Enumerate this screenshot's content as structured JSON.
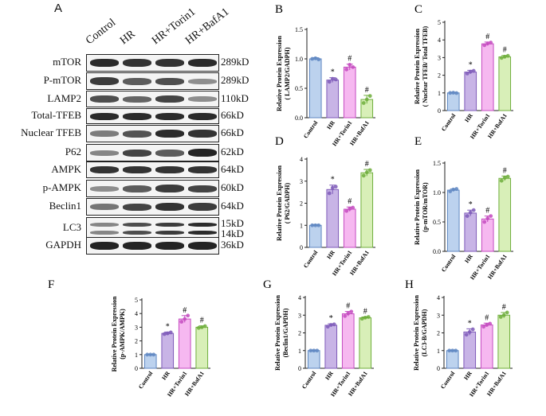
{
  "panel_a": {
    "letter": "A",
    "lanes": [
      "Control",
      "HR",
      "HR+Torin1",
      "HR+BafA1"
    ],
    "rows": [
      {
        "label": "mTOR",
        "kd": [
          "289kD"
        ],
        "intensity": [
          0.9,
          0.85,
          0.85,
          0.9
        ]
      },
      {
        "label": "P-mTOR",
        "kd": [
          "289kD"
        ],
        "intensity": [
          0.8,
          0.6,
          0.7,
          0.3
        ]
      },
      {
        "label": "LAMP2",
        "kd": [
          "110kD"
        ],
        "intensity": [
          0.7,
          0.55,
          0.75,
          0.3
        ]
      },
      {
        "label": "Total-TFEB",
        "kd": [
          "66kD"
        ],
        "intensity": [
          0.9,
          0.9,
          0.9,
          0.9
        ]
      },
      {
        "label": "Nuclear TFEB",
        "kd": [
          "66kD"
        ],
        "intensity": [
          0.4,
          0.65,
          0.9,
          0.85
        ]
      },
      {
        "label": "P62",
        "kd": [
          "62kD"
        ],
        "intensity": [
          0.35,
          0.75,
          0.6,
          0.95
        ]
      },
      {
        "label": "AMPK",
        "kd": [
          "64kD"
        ],
        "intensity": [
          0.85,
          0.85,
          0.85,
          0.85
        ]
      },
      {
        "label": "p-AMPK",
        "kd": [
          "60kD"
        ],
        "intensity": [
          0.3,
          0.6,
          0.8,
          0.75
        ]
      },
      {
        "label": "Beclin1",
        "kd": [
          "64kD"
        ],
        "intensity": [
          0.45,
          0.75,
          0.85,
          0.8
        ]
      },
      {
        "label": "LC3",
        "kd": [
          "15kD",
          "14kD"
        ],
        "intensity": [
          0.35,
          0.7,
          0.8,
          0.9
        ]
      },
      {
        "label": "GAPDH",
        "kd": [
          "36kD"
        ],
        "intensity": [
          0.95,
          0.95,
          0.95,
          0.95
        ]
      }
    ]
  },
  "colors": {
    "fills": [
      "#bcd2ee",
      "#c8b4e6",
      "#f6b8f0",
      "#d8efb8"
    ],
    "edges": [
      "#5f87c2",
      "#7e5ab8",
      "#c44bc0",
      "#6fae3c"
    ]
  },
  "chart_data": [
    {
      "letter": "B",
      "type": "bar",
      "categories": [
        "Control",
        "HR",
        "HR+Torin1",
        "HR+BafA1"
      ],
      "values": [
        1.0,
        0.64,
        0.86,
        0.31
      ],
      "errors": [
        0.02,
        0.04,
        0.05,
        0.07
      ],
      "points": [
        [
          1.0,
          1.01,
          0.99
        ],
        [
          0.61,
          0.66,
          0.65
        ],
        [
          0.82,
          0.9,
          0.86
        ],
        [
          0.25,
          0.31,
          0.37
        ]
      ],
      "marks": [
        "",
        "*",
        "#",
        "#"
      ],
      "ylabel": [
        "Relative Protein Expression",
        "( LAMP2/GADPH)"
      ],
      "ylim": [
        0,
        1.5
      ],
      "yticks": [
        "0.0",
        "0.5",
        "1.0",
        "1.5"
      ]
    },
    {
      "letter": "C",
      "type": "bar",
      "categories": [
        "Control",
        "HR",
        "HR+Torin1",
        "HR+BafA1"
      ],
      "values": [
        1.0,
        2.18,
        3.78,
        3.04
      ],
      "errors": [
        0.03,
        0.1,
        0.1,
        0.08
      ],
      "points": [
        [
          1.0,
          1.01,
          0.99
        ],
        [
          2.1,
          2.2,
          2.25
        ],
        [
          3.7,
          3.8,
          3.85
        ],
        [
          2.98,
          3.05,
          3.1
        ]
      ],
      "marks": [
        "",
        "*",
        "#",
        "#"
      ],
      "ylabel": [
        "Relative Protein Expression",
        "( Nuclear TFEB/ Total TFEB)"
      ],
      "ylim": [
        0,
        5
      ],
      "yticks": [
        "0",
        "1",
        "2",
        "3",
        "4",
        "5"
      ]
    },
    {
      "letter": "D",
      "type": "bar",
      "categories": [
        "Control",
        "HR",
        "HR+Torin1",
        "HR+BafA1"
      ],
      "values": [
        1.0,
        2.62,
        1.73,
        3.38
      ],
      "errors": [
        0.03,
        0.2,
        0.1,
        0.15
      ],
      "points": [
        [
          1.0,
          1.0,
          1.0
        ],
        [
          2.45,
          2.7,
          2.75
        ],
        [
          1.65,
          1.75,
          1.8
        ],
        [
          3.25,
          3.4,
          3.5
        ]
      ],
      "marks": [
        "",
        "*",
        "#",
        "#"
      ],
      "ylabel": [
        "Relative Protein Expression",
        "( P62/GADPH)"
      ],
      "ylim": [
        0,
        4
      ],
      "yticks": [
        "0",
        "1",
        "2",
        "3",
        "4"
      ]
    },
    {
      "letter": "E",
      "type": "bar",
      "categories": [
        "Control",
        "HR",
        "HR+Torin1",
        "HR+BafA1"
      ],
      "values": [
        1.04,
        0.65,
        0.55,
        1.24
      ],
      "errors": [
        0.02,
        0.05,
        0.05,
        0.04
      ],
      "points": [
        [
          1.02,
          1.05,
          1.06
        ],
        [
          0.6,
          0.66,
          0.7
        ],
        [
          0.5,
          0.56,
          0.6
        ],
        [
          1.2,
          1.25,
          1.27
        ]
      ],
      "marks": [
        "",
        "*",
        "#",
        "#"
      ],
      "ylabel": [
        "Relative Protein Expression",
        "(p-mTOR/mTOR)"
      ],
      "ylim": [
        0,
        1.5
      ],
      "yticks": [
        "0.0",
        "0.5",
        "1.0",
        "1.5"
      ]
    },
    {
      "letter": "F",
      "type": "bar",
      "categories": [
        "Control",
        "HR",
        "HR+Torin1",
        "HR+BafA1"
      ],
      "values": [
        1.0,
        2.55,
        3.6,
        3.0
      ],
      "errors": [
        0.02,
        0.1,
        0.25,
        0.1
      ],
      "points": [
        [
          1.0,
          1.0,
          1.0
        ],
        [
          2.5,
          2.55,
          2.62
        ],
        [
          3.4,
          3.6,
          3.85
        ],
        [
          2.95,
          3.0,
          3.08
        ]
      ],
      "marks": [
        "",
        "*",
        "#",
        "#"
      ],
      "ylabel": [
        "Relative Protein Expression",
        "(p-AMPK/AMPK)"
      ],
      "ylim": [
        0,
        5
      ],
      "yticks": [
        "0",
        "1",
        "2",
        "3",
        "4",
        "5"
      ]
    },
    {
      "letter": "G",
      "type": "bar",
      "categories": [
        "Control",
        "HR",
        "HR+Torin1",
        "HR+BafA1"
      ],
      "values": [
        1.0,
        2.43,
        3.08,
        2.85
      ],
      "errors": [
        0.02,
        0.08,
        0.13,
        0.05
      ],
      "points": [
        [
          1.0,
          1.0,
          1.0
        ],
        [
          2.35,
          2.45,
          2.48
        ],
        [
          2.95,
          3.1,
          3.2
        ],
        [
          2.8,
          2.86,
          2.9
        ]
      ],
      "marks": [
        "",
        "*",
        "#",
        "#"
      ],
      "ylabel": [
        "Relative Protein Expression",
        "(Beclin1/GAPDH)"
      ],
      "ylim": [
        0,
        4
      ],
      "yticks": [
        "0",
        "1",
        "2",
        "3",
        "4"
      ]
    },
    {
      "letter": "H",
      "type": "bar",
      "categories": [
        "Control",
        "HR",
        "HR+Torin1",
        "HR+BafA1"
      ],
      "values": [
        1.0,
        2.05,
        2.45,
        3.0
      ],
      "errors": [
        0.02,
        0.18,
        0.1,
        0.15
      ],
      "points": [
        [
          1.0,
          1.0,
          1.0
        ],
        [
          1.9,
          2.05,
          2.2
        ],
        [
          2.35,
          2.45,
          2.52
        ],
        [
          2.9,
          3.0,
          3.15
        ]
      ],
      "marks": [
        "",
        "*",
        "#",
        "#"
      ],
      "ylabel": [
        "Relative Protein Expression",
        "(LC3-B/GAPDH)"
      ],
      "ylim": [
        0,
        4
      ],
      "yticks": [
        "0",
        "1",
        "2",
        "3",
        "4"
      ]
    }
  ]
}
